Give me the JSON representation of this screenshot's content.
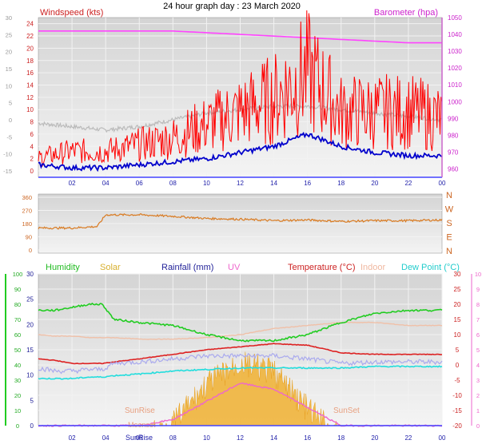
{
  "header": {
    "title": "24 hour graph day : 23 March 2020"
  },
  "colors": {
    "windspeed": "#ff0000",
    "windgust": "#ff0000",
    "windavg": "#0000cc",
    "temp_outdoor_grey": "#bbbbbb",
    "barometer": "#ff44ff",
    "direction": "#d97a20",
    "humidity": "#22cc22",
    "solar": "#f0b030",
    "rainfall": "#3333aa",
    "uv": "#ee66cc",
    "temperature": "#dd2222",
    "indoor": "#f0c0a8",
    "dewpoint": "#22dddd",
    "apparent": "#aaaaee",
    "panel_bg": "#dcdcdc",
    "grid": "#f6f6f6"
  },
  "chart_data": [
    {
      "type": "line",
      "panel": "wind-barometer",
      "title": "24 hour graph day : 23 March 2020",
      "x_ticks": [
        "02",
        "04",
        "06",
        "08",
        "10",
        "12",
        "14",
        "16",
        "18",
        "20",
        "22",
        "00"
      ],
      "left_axis": {
        "label": "Windspeed (kts)",
        "ylim": [
          0,
          25
        ],
        "ticks": [
          0,
          2,
          4,
          6,
          8,
          10,
          12,
          14,
          16,
          18,
          20,
          22,
          24
        ]
      },
      "left_outer_axis": {
        "ylim": [
          -15,
          30
        ],
        "ticks": [
          -15,
          -10,
          -5,
          0,
          5,
          10,
          15,
          20,
          25,
          30
        ]
      },
      "right_axis": {
        "label": "Barometer (hpa)",
        "ylim": [
          955,
          1050
        ],
        "ticks": [
          960,
          970,
          980,
          990,
          1000,
          1010,
          1020,
          1030,
          1040,
          1050
        ]
      },
      "x": [
        0,
        2,
        4,
        6,
        8,
        10,
        12,
        14,
        16,
        18,
        20,
        22,
        24
      ],
      "series": [
        {
          "name": "Barometer (hpa)",
          "axis": "right",
          "values": [
            1042,
            1042,
            1042,
            1042,
            1042,
            1041,
            1040,
            1039,
            1038,
            1037,
            1036,
            1035,
            1035
          ]
        },
        {
          "axis": "outer",
          "values": [
            -1,
            -2,
            -3,
            -2,
            0,
            2,
            3,
            4,
            4,
            3,
            2,
            1,
            0
          ]
        },
        {
          "axis": "left",
          "values": [
            2,
            3,
            3,
            4,
            5,
            7,
            9,
            11,
            15,
            9,
            9,
            9,
            8
          ]
        },
        {
          "axis": "left",
          "values": [
            1,
            0.5,
            0.5,
            1,
            1.5,
            2,
            3,
            4,
            6,
            4,
            3,
            2.5,
            2.5
          ]
        }
      ]
    },
    {
      "type": "line",
      "panel": "wind-direction",
      "y_ticks": [
        "N",
        "W",
        "S",
        "E",
        "N"
      ],
      "y_ticks_deg": [
        360,
        270,
        180,
        90,
        0
      ],
      "x": [
        0,
        2,
        3.5,
        4,
        6,
        8,
        10,
        12,
        14,
        16,
        18,
        20,
        22,
        24
      ],
      "series": [
        {
          "values": [
            150,
            150,
            160,
            240,
            240,
            230,
            215,
            210,
            200,
            205,
            195,
            200,
            200,
            205
          ]
        }
      ]
    },
    {
      "type": "line",
      "panel": "temperature-humidity",
      "axis_labels": {
        "humidity": "Humidity",
        "solar": "Solar",
        "rainfall": "Rainfall (mm)",
        "uv": "UV",
        "temperature": "Temperature (°C)",
        "indoor": "Indoor",
        "dewpoint": "Dew Point (°C)"
      },
      "x_ticks": [
        "02",
        "04",
        "06",
        "08",
        "10",
        "12",
        "14",
        "16",
        "18",
        "20",
        "22",
        "00"
      ],
      "sun_labels": [
        "SunRise",
        "SunSet",
        "SunRise",
        "Moonset"
      ],
      "humidity_axis": {
        "ylim": [
          0,
          100
        ],
        "ticks": [
          0,
          10,
          20,
          30,
          40,
          50,
          60,
          70,
          80,
          90,
          100
        ]
      },
      "rain_axis": {
        "ylim": [
          0,
          30
        ],
        "ticks": [
          0,
          5,
          10,
          15,
          20,
          25,
          30
        ]
      },
      "temp_axis": {
        "ylim": [
          -20,
          30
        ],
        "ticks": [
          -20,
          -15,
          -10,
          -5,
          0,
          5,
          10,
          15,
          20,
          25,
          30
        ]
      },
      "uv_axis": {
        "ylim": [
          0,
          10
        ],
        "ticks": [
          0,
          1,
          2,
          3,
          4,
          5,
          6,
          7,
          8,
          9,
          10
        ]
      },
      "x": [
        0,
        1,
        2,
        3,
        3.8,
        4.5,
        6,
        8,
        10,
        12,
        14,
        16,
        18,
        20,
        22,
        24
      ],
      "series": [
        {
          "name": "Humidity",
          "axis": "temp",
          "values": [
            18,
            18,
            19,
            20,
            20,
            15,
            14,
            13,
            10,
            8,
            8,
            10,
            14,
            17,
            18,
            18
          ]
        },
        {
          "name": "Indoor",
          "axis": "temp",
          "values": [
            10,
            9.5,
            9.5,
            9,
            9,
            9,
            8.5,
            8.5,
            9,
            10,
            12,
            13,
            14,
            14,
            13,
            13
          ]
        },
        {
          "name": "Temperature (°C)",
          "axis": "temp",
          "values": [
            2,
            1.5,
            0.5,
            0.5,
            0.5,
            1,
            2,
            3.5,
            5,
            6,
            7,
            6.5,
            4,
            3.5,
            3.5,
            3.5
          ]
        },
        {
          "axis": "temp",
          "values": [
            -1,
            -2,
            -2,
            -1.5,
            -1.5,
            0.5,
            1,
            2,
            3,
            3,
            3,
            2,
            0.5,
            1,
            1,
            1
          ]
        },
        {
          "name": "Dew Point (°C)",
          "axis": "temp",
          "values": [
            -4.5,
            -4.5,
            -4.5,
            -4,
            -4,
            -3.5,
            -3,
            -2,
            -1.5,
            -1,
            -1,
            -1,
            -1,
            -0.5,
            -0.5,
            -0.5
          ]
        },
        {
          "name": "UV",
          "axis": "temp",
          "values": [
            -20,
            -20,
            -20,
            -20,
            -20,
            -20,
            -20,
            -18,
            -12,
            -6,
            -8,
            -14,
            -20,
            -20,
            -20,
            -20
          ]
        },
        {
          "name": "Solar",
          "axis": "temp",
          "values": [
            -20,
            -20,
            -20,
            -20,
            -20,
            -20,
            -20,
            -15,
            -2,
            5,
            2,
            -10,
            -20,
            -20,
            -20,
            -20
          ]
        }
      ]
    }
  ]
}
